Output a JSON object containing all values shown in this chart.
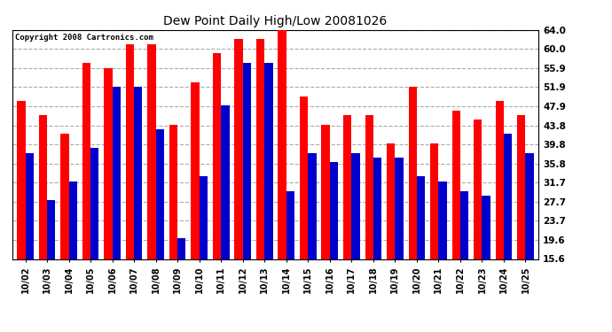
{
  "title": "Dew Point Daily High/Low 20081026",
  "copyright": "Copyright 2008 Cartronics.com",
  "dates": [
    "10/02",
    "10/03",
    "10/04",
    "10/05",
    "10/06",
    "10/07",
    "10/08",
    "10/09",
    "10/10",
    "10/11",
    "10/12",
    "10/13",
    "10/14",
    "10/15",
    "10/16",
    "10/17",
    "10/18",
    "10/19",
    "10/20",
    "10/21",
    "10/22",
    "10/23",
    "10/24",
    "10/25"
  ],
  "high": [
    49,
    46,
    42,
    57,
    56,
    61,
    61,
    44,
    53,
    59,
    62,
    62,
    64,
    50,
    44,
    46,
    46,
    40,
    52,
    40,
    47,
    45,
    49,
    46
  ],
  "low": [
    38,
    28,
    32,
    39,
    52,
    52,
    43,
    20,
    33,
    48,
    57,
    57,
    30,
    38,
    36,
    38,
    37,
    37,
    33,
    32,
    30,
    29,
    42,
    38
  ],
  "high_color": "#ff0000",
  "low_color": "#0000cc",
  "bg_color": "#ffffff",
  "grid_color": "#aaaaaa",
  "yticks": [
    15.6,
    19.6,
    23.7,
    27.7,
    31.7,
    35.8,
    39.8,
    43.8,
    47.9,
    51.9,
    55.9,
    60.0,
    64.0
  ],
  "ymin": 15.6,
  "ymax": 64.0,
  "bar_width": 0.38,
  "figwidth": 6.9,
  "figheight": 3.75,
  "dpi": 100
}
